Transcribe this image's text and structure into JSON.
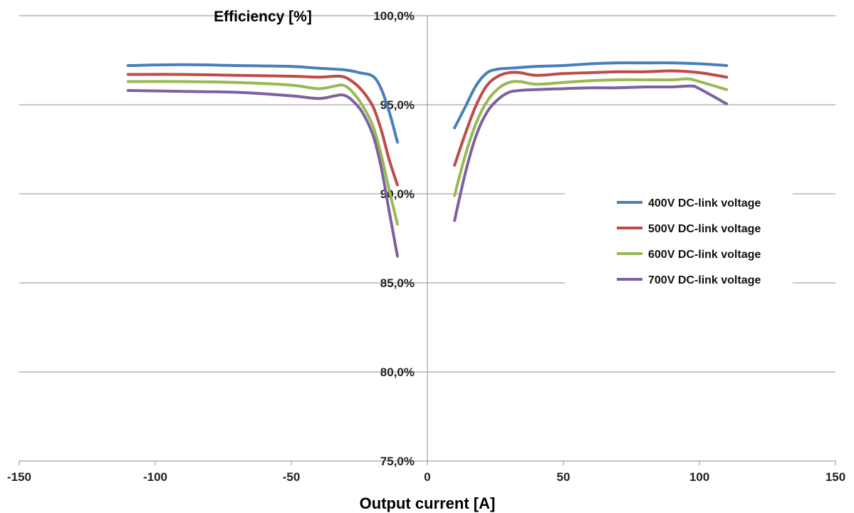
{
  "chart_data": {
    "type": "line",
    "title": "",
    "xlabel": "Output current [A]",
    "ylabel": "Efficiency [%]",
    "xlim": [
      -150,
      150
    ],
    "ylim": [
      75,
      100
    ],
    "x_ticks": [
      -150,
      -100,
      -50,
      0,
      50,
      100,
      150
    ],
    "x_tick_labels": [
      "-150",
      "-100",
      "-50",
      "0",
      "50",
      "100",
      "150"
    ],
    "y_ticks": [
      75,
      80,
      85,
      90,
      95,
      100
    ],
    "y_tick_labels": [
      "75,0%",
      "80,0%",
      "85,0%",
      "90,0%",
      "95,0%",
      "100,0%"
    ],
    "grid": "horizontal",
    "legend_position": "right",
    "series": [
      {
        "name": "400V DC-link voltage",
        "color": "#4a7ebb",
        "segments": [
          [
            [
              -110,
              97.2
            ],
            [
              -90,
              97.25
            ],
            [
              -70,
              97.2
            ],
            [
              -50,
              97.15
            ],
            [
              -40,
              97.05
            ],
            [
              -30,
              96.95
            ],
            [
              -25,
              96.8
            ],
            [
              -20,
              96.6
            ],
            [
              -17,
              95.9
            ],
            [
              -14,
              94.6
            ],
            [
              -11,
              92.9
            ]
          ],
          [
            [
              10,
              93.7
            ],
            [
              14,
              94.9
            ],
            [
              18,
              96.1
            ],
            [
              22,
              96.8
            ],
            [
              26,
              97.0
            ],
            [
              30,
              97.05
            ],
            [
              40,
              97.15
            ],
            [
              50,
              97.2
            ],
            [
              60,
              97.3
            ],
            [
              70,
              97.35
            ],
            [
              80,
              97.35
            ],
            [
              90,
              97.35
            ],
            [
              100,
              97.3
            ],
            [
              110,
              97.2
            ]
          ]
        ]
      },
      {
        "name": "500V DC-link voltage",
        "color": "#be4b48",
        "segments": [
          [
            [
              -110,
              96.7
            ],
            [
              -90,
              96.7
            ],
            [
              -70,
              96.65
            ],
            [
              -50,
              96.6
            ],
            [
              -40,
              96.55
            ],
            [
              -32,
              96.6
            ],
            [
              -28,
              96.35
            ],
            [
              -24,
              95.8
            ],
            [
              -20,
              94.9
            ],
            [
              -17,
              93.6
            ],
            [
              -14,
              91.9
            ],
            [
              -11,
              90.5
            ]
          ],
          [
            [
              10,
              91.6
            ],
            [
              14,
              93.4
            ],
            [
              18,
              95.0
            ],
            [
              22,
              96.1
            ],
            [
              26,
              96.6
            ],
            [
              30,
              96.8
            ],
            [
              34,
              96.8
            ],
            [
              40,
              96.65
            ],
            [
              50,
              96.75
            ],
            [
              60,
              96.8
            ],
            [
              70,
              96.85
            ],
            [
              80,
              96.85
            ],
            [
              90,
              96.9
            ],
            [
              100,
              96.8
            ],
            [
              110,
              96.55
            ]
          ]
        ]
      },
      {
        "name": "600V DC-link voltage",
        "color": "#98b954",
        "segments": [
          [
            [
              -110,
              96.3
            ],
            [
              -90,
              96.3
            ],
            [
              -70,
              96.25
            ],
            [
              -50,
              96.1
            ],
            [
              -40,
              95.9
            ],
            [
              -34,
              96.05
            ],
            [
              -31,
              96.1
            ],
            [
              -28,
              95.8
            ],
            [
              -24,
              95.0
            ],
            [
              -20,
              93.8
            ],
            [
              -17,
              92.2
            ],
            [
              -14,
              90.2
            ],
            [
              -11,
              88.3
            ]
          ],
          [
            [
              10,
              89.9
            ],
            [
              14,
              92.2
            ],
            [
              18,
              94.0
            ],
            [
              22,
              95.2
            ],
            [
              26,
              95.9
            ],
            [
              30,
              96.25
            ],
            [
              34,
              96.3
            ],
            [
              40,
              96.15
            ],
            [
              50,
              96.25
            ],
            [
              60,
              96.35
            ],
            [
              70,
              96.4
            ],
            [
              80,
              96.4
            ],
            [
              90,
              96.4
            ],
            [
              96,
              96.45
            ],
            [
              100,
              96.3
            ],
            [
              110,
              95.85
            ]
          ]
        ]
      },
      {
        "name": "700V DC-link voltage",
        "color": "#7d60a0",
        "segments": [
          [
            [
              -110,
              95.8
            ],
            [
              -90,
              95.75
            ],
            [
              -70,
              95.7
            ],
            [
              -50,
              95.5
            ],
            [
              -40,
              95.35
            ],
            [
              -34,
              95.5
            ],
            [
              -31,
              95.55
            ],
            [
              -28,
              95.3
            ],
            [
              -24,
              94.6
            ],
            [
              -20,
              93.3
            ],
            [
              -17,
              91.5
            ],
            [
              -14,
              89.0
            ],
            [
              -11,
              86.5
            ]
          ],
          [
            [
              10,
              88.5
            ],
            [
              14,
              91.2
            ],
            [
              18,
              93.3
            ],
            [
              22,
              94.6
            ],
            [
              26,
              95.3
            ],
            [
              30,
              95.7
            ],
            [
              34,
              95.8
            ],
            [
              40,
              95.85
            ],
            [
              50,
              95.9
            ],
            [
              60,
              95.95
            ],
            [
              70,
              95.95
            ],
            [
              80,
              96.0
            ],
            [
              90,
              96.0
            ],
            [
              97,
              96.05
            ],
            [
              100,
              95.9
            ],
            [
              110,
              95.05
            ]
          ]
        ]
      }
    ]
  }
}
